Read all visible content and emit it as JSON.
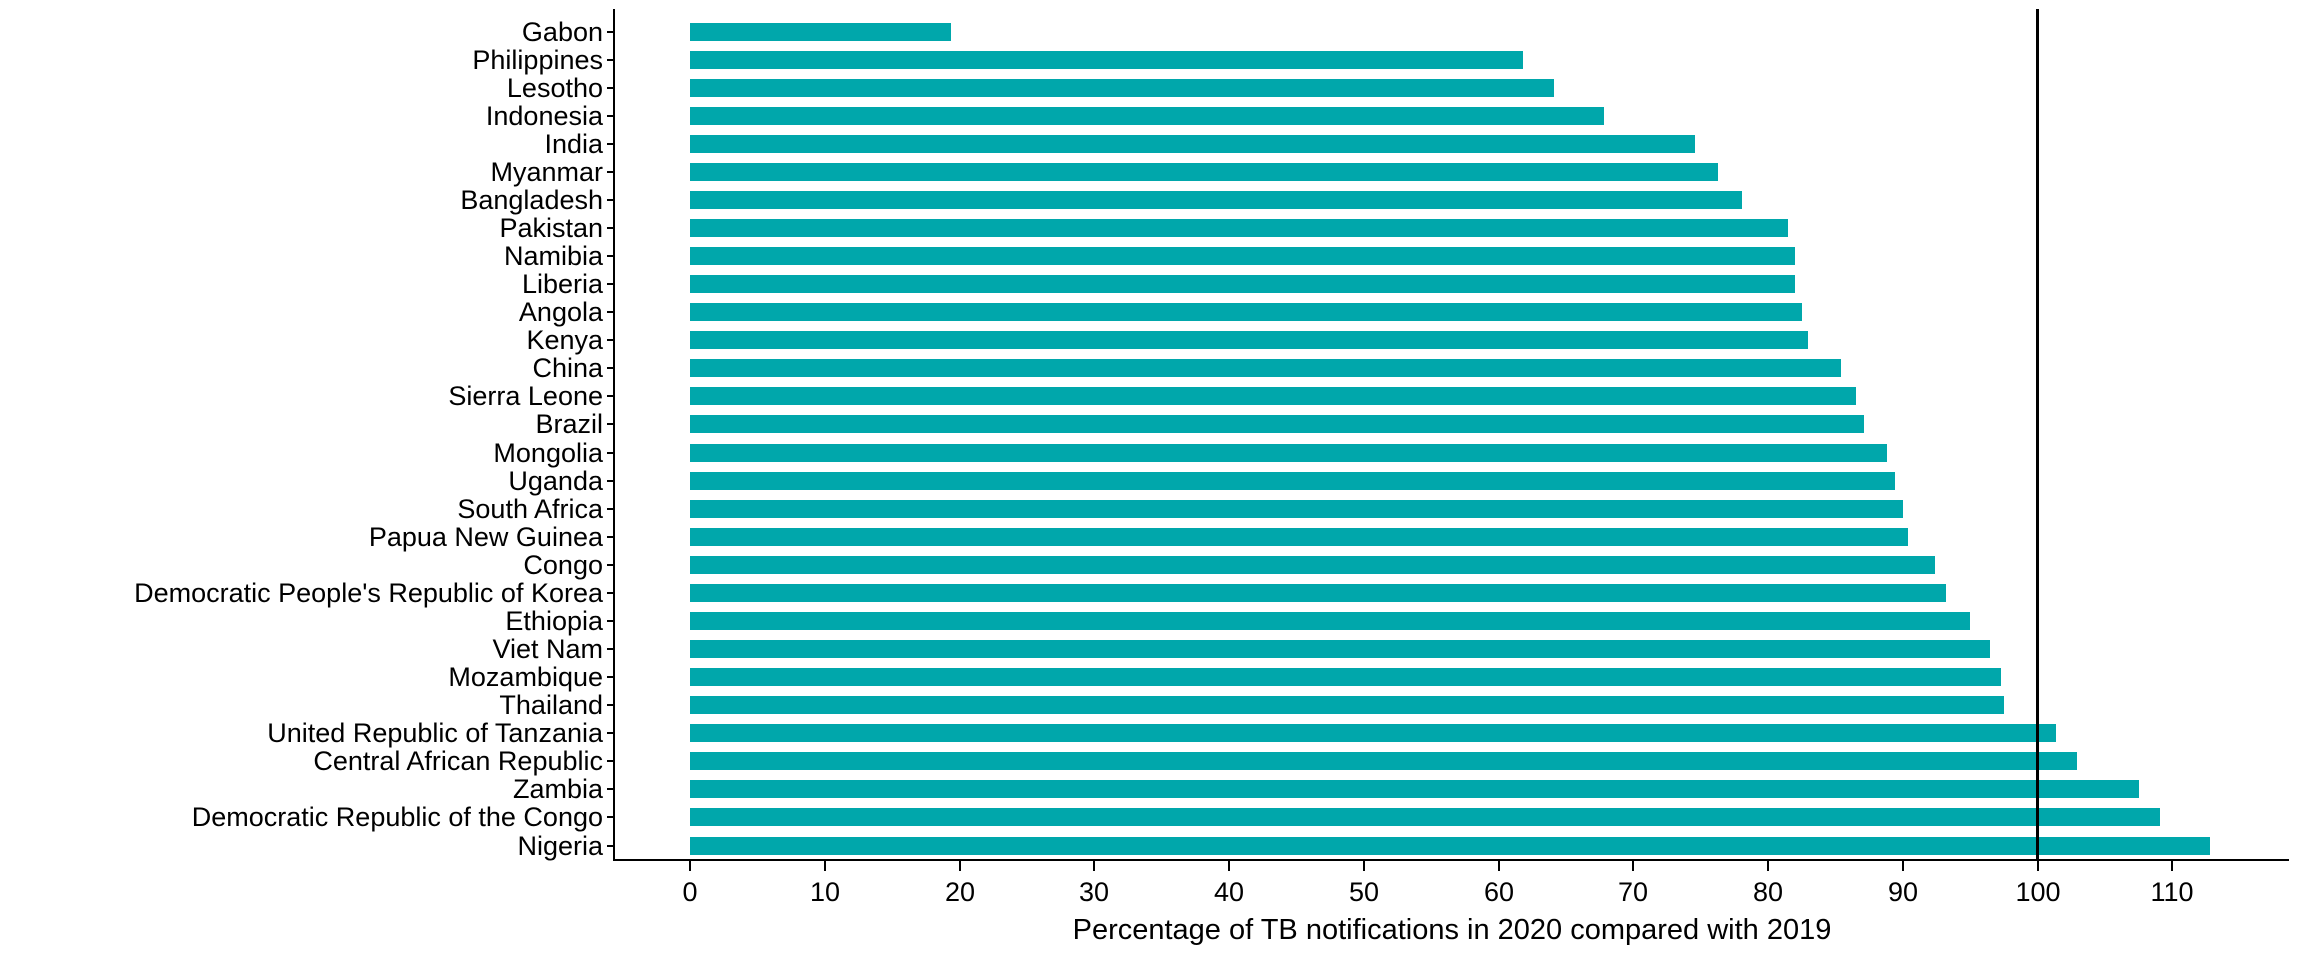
{
  "chart_data": {
    "type": "bar",
    "orientation": "horizontal",
    "title": "",
    "xlabel": "Percentage of TB notifications in 2020 compared with 2019",
    "ylabel": "",
    "categories": [
      "Gabon",
      "Philippines",
      "Lesotho",
      "Indonesia",
      "India",
      "Myanmar",
      "Bangladesh",
      "Pakistan",
      "Namibia",
      "Liberia",
      "Angola",
      "Kenya",
      "China",
      "Sierra Leone",
      "Brazil",
      "Mongolia",
      "Uganda",
      "South Africa",
      "Papua New Guinea",
      "Congo",
      "Democratic People's Republic of Korea",
      "Ethiopia",
      "Viet Nam",
      "Mozambique",
      "Thailand",
      "United Republic of Tanzania",
      "Central African Republic",
      "Zambia",
      "Democratic Republic of the Congo",
      "Nigeria"
    ],
    "values": [
      19.4,
      61.8,
      64.1,
      67.8,
      74.6,
      76.3,
      78.1,
      81.5,
      82.0,
      82.0,
      82.5,
      83.0,
      85.4,
      86.5,
      87.1,
      88.8,
      89.4,
      90.0,
      90.4,
      92.4,
      93.2,
      95.0,
      96.5,
      97.3,
      97.5,
      101.4,
      102.9,
      107.5,
      109.1,
      112.8
    ],
    "x_ticks": [
      0,
      10,
      20,
      30,
      40,
      50,
      60,
      70,
      80,
      90,
      100,
      110
    ],
    "xlim": [
      0,
      117
    ],
    "reference_line_x": 100,
    "grid": "off",
    "legend": "none",
    "bar_color": "#00A7AB",
    "axis_color": "#000000",
    "reference_line_color": "#000000",
    "background_color": "#FFFFFF"
  }
}
